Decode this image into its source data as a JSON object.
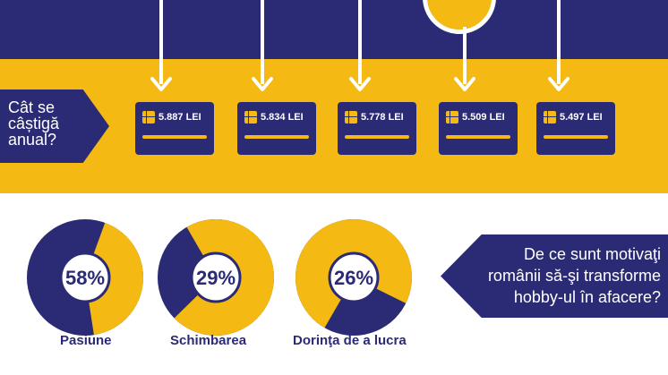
{
  "header": {
    "question_lines": [
      "Cât se",
      "câștigă",
      "anual?"
    ]
  },
  "cards": [
    {
      "amount": "5.887 LEI"
    },
    {
      "amount": "5.834 LEI"
    },
    {
      "amount": "5.778 LEI"
    },
    {
      "amount": "5.509 LEI"
    },
    {
      "amount": "5.497 LEI"
    }
  ],
  "motivations": {
    "question": "De ce sunt motivaţi românii să-şi transforme hobby-ul în afacere?",
    "items": [
      {
        "percent": "58%",
        "value": 58,
        "label": "Pasiune"
      },
      {
        "percent": "29%",
        "value": 29,
        "label": "Schimbarea"
      },
      {
        "percent": "26%",
        "value": 26,
        "label": "Dorinţa de a lucra"
      }
    ]
  },
  "colors": {
    "navy": "#2b2a74",
    "yellow": "#f4b912",
    "white": "#ffffff"
  }
}
